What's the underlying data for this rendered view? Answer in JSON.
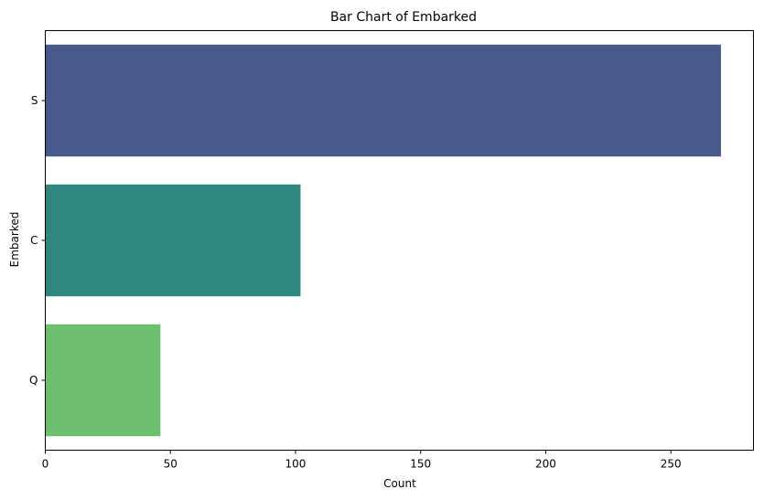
{
  "chart_data": {
    "type": "bar",
    "orientation": "horizontal",
    "title": "Bar Chart of Embarked",
    "xlabel": "Count",
    "ylabel": "Embarked",
    "categories": [
      "S",
      "C",
      "Q"
    ],
    "values": [
      270,
      102,
      46
    ],
    "colors": [
      "#46598a",
      "#2f8780",
      "#6dbe6d"
    ],
    "xlim": [
      0,
      283
    ],
    "xticks": [
      0,
      50,
      100,
      150,
      200,
      250
    ],
    "grid": false,
    "legend": "none"
  }
}
